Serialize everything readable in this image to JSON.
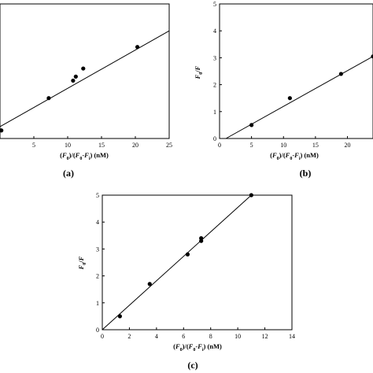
{
  "chart_data": [
    {
      "panel": "(a)",
      "type": "scatter",
      "title": "",
      "xlabel": "(F0)/(F0-Fi) (nM)",
      "ylabel": "",
      "xlim": [
        0,
        25
      ],
      "ylim": [
        0,
        5
      ],
      "xticks": [
        5,
        10,
        15,
        20,
        25
      ],
      "yticks": [],
      "grid": false,
      "points": [
        {
          "x": 0.2,
          "y": 0.3
        },
        {
          "x": 7.2,
          "y": 1.5
        },
        {
          "x": 10.8,
          "y": 2.15
        },
        {
          "x": 11.2,
          "y": 2.3
        },
        {
          "x": 12.3,
          "y": 2.6
        },
        {
          "x": 20.3,
          "y": 3.4
        }
      ],
      "fit_line": {
        "x": [
          0,
          25
        ],
        "y": [
          0.44,
          4.0
        ]
      }
    },
    {
      "panel": "(b)",
      "type": "scatter",
      "title": "",
      "xlabel": "(F0)/(F0-Fi) (nM)",
      "ylabel": "F0/F",
      "xlim": [
        0,
        24
      ],
      "ylim": [
        0,
        5
      ],
      "xticks": [
        0,
        5,
        10,
        15,
        20
      ],
      "yticks": [
        0,
        1,
        2,
        3,
        4,
        5
      ],
      "grid": false,
      "points": [
        {
          "x": 5,
          "y": 0.5
        },
        {
          "x": 11,
          "y": 1.5
        },
        {
          "x": 19,
          "y": 2.4
        },
        {
          "x": 24,
          "y": 3.05
        }
      ],
      "fit_line": {
        "x": [
          1,
          24
        ],
        "y": [
          0,
          3.05
        ]
      }
    },
    {
      "panel": "(c)",
      "type": "scatter",
      "title": "",
      "xlabel": "(F0)/(F0-Fi) (nM)",
      "ylabel": "F0/F",
      "xlim": [
        0,
        14
      ],
      "ylim": [
        0,
        5
      ],
      "xticks": [
        0,
        2,
        4,
        6,
        8,
        10,
        12,
        14
      ],
      "yticks": [
        0,
        1,
        2,
        3,
        4,
        5
      ],
      "grid": false,
      "points": [
        {
          "x": 1.3,
          "y": 0.5
        },
        {
          "x": 3.5,
          "y": 1.7
        },
        {
          "x": 6.3,
          "y": 2.8
        },
        {
          "x": 7.3,
          "y": 3.3
        },
        {
          "x": 7.3,
          "y": 3.4
        },
        {
          "x": 11.0,
          "y": 5.0
        }
      ],
      "fit_line": {
        "x": [
          0,
          11.0
        ],
        "y": [
          0,
          5.0
        ]
      }
    }
  ]
}
